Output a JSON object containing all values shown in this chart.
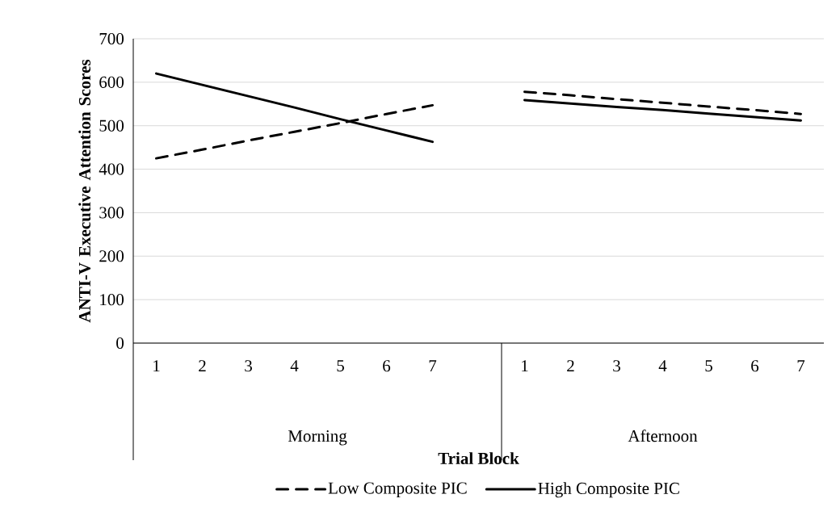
{
  "chart_data": {
    "type": "line",
    "xlabel": "Trial Block",
    "ylabel": "ANTI-V Executive Attention Scores",
    "categories": [
      "1",
      "2",
      "3",
      "4",
      "5",
      "6",
      "7",
      null,
      "1",
      "2",
      "3",
      "4",
      "5",
      "6",
      "7"
    ],
    "annotations": [
      "Morning",
      "Afternoon"
    ],
    "series": [
      {
        "name": "Low Composite PIC",
        "color": "#000000",
        "line_style": "dashed",
        "values": [
          425,
          445,
          466,
          486,
          506,
          527,
          547,
          null,
          578,
          570,
          561,
          553,
          544,
          536,
          527
        ]
      },
      {
        "name": "High Composite PIC",
        "color": "#000000",
        "line_style": "solid",
        "values": [
          620,
          594,
          568,
          542,
          515,
          489,
          463,
          null,
          559,
          551,
          543,
          536,
          528,
          520,
          512
        ]
      }
    ],
    "ylim": [
      0,
      700
    ],
    "yticks": [
      0,
      100,
      200,
      300,
      400,
      500,
      600,
      700
    ],
    "grid": "y",
    "legend": "bottom",
    "marker": "none"
  }
}
